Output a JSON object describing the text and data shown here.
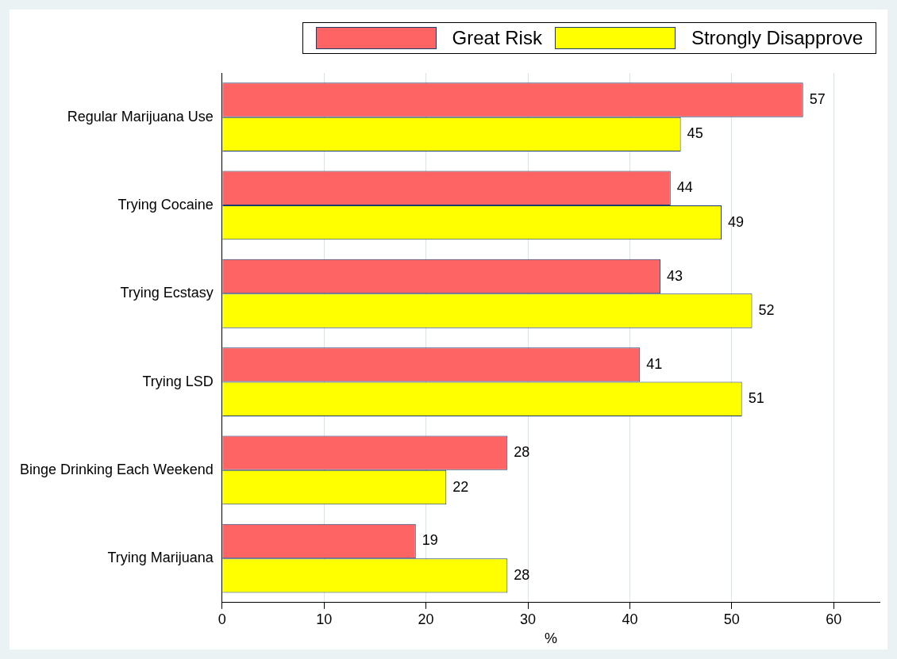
{
  "chart_data": {
    "type": "bar",
    "orientation": "horizontal",
    "xlabel": "%",
    "categories": [
      "Regular Marijuana Use",
      "Trying Cocaine",
      "Trying Ecstasy",
      "Trying LSD",
      "Binge Drinking Each Weekend",
      "Trying Marijuana"
    ],
    "series": [
      {
        "name": "Great Risk",
        "color": "#ff6464",
        "values": [
          57,
          44,
          43,
          41,
          28,
          19
        ]
      },
      {
        "name": "Strongly Disapprove",
        "color": "#ffff00",
        "values": [
          45,
          49,
          52,
          51,
          22,
          28
        ]
      }
    ],
    "xlim": [
      0,
      64.5
    ],
    "xticks": [
      0,
      10,
      20,
      30,
      40,
      50,
      60
    ],
    "grid": "x",
    "legend": "top right",
    "data_labels": true
  }
}
